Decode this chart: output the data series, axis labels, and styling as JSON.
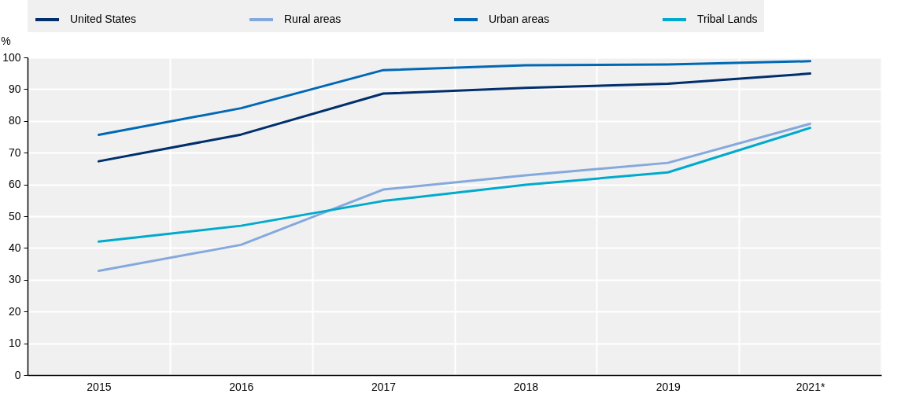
{
  "chart_data": {
    "type": "line",
    "ylabel": "%",
    "categories": [
      "2015",
      "2016",
      "2017",
      "2018",
      "2019",
      "2021*"
    ],
    "series": [
      {
        "name": "United States",
        "color": "#002f6c",
        "values": [
          67.3,
          75.7,
          88.6,
          90.4,
          91.7,
          94.9
        ]
      },
      {
        "name": "Rural areas",
        "color": "#85a9dc",
        "values": [
          32.8,
          41.0,
          58.4,
          62.9,
          66.8,
          79.1
        ]
      },
      {
        "name": "Urban areas",
        "color": "#0068b4",
        "values": [
          75.6,
          84.0,
          96.0,
          97.5,
          97.8,
          98.8
        ]
      },
      {
        "name": "Tribal Lands",
        "color": "#00aacc",
        "values": [
          42.0,
          47.0,
          54.8,
          59.9,
          63.8,
          77.8
        ]
      }
    ],
    "ylim": [
      0,
      100
    ],
    "yticks": [
      0,
      10,
      20,
      30,
      40,
      50,
      60,
      70,
      80,
      90,
      100
    ],
    "grid": true,
    "legend": "top",
    "marker": "none",
    "line_style": "solid"
  }
}
